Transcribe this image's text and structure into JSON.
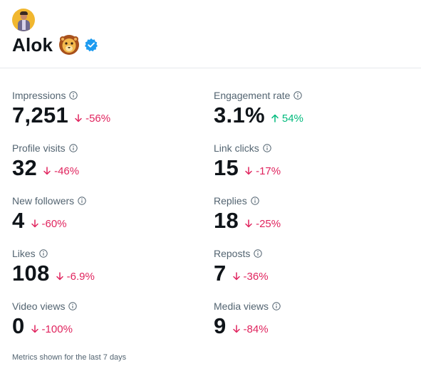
{
  "profile": {
    "name": "Alok",
    "avatar_icon": "profile-photo",
    "emoji_icon": "lion-face-icon",
    "badge_icon": "verified-badge-icon",
    "badge_color": "#1d9bf0"
  },
  "colors": {
    "negative": "#e0245e",
    "positive": "#00ba7c",
    "label": "#536471"
  },
  "metrics": [
    {
      "label": "Impressions",
      "value": "7,251",
      "change": "-56%",
      "direction": "down"
    },
    {
      "label": "Engagement rate",
      "value": "3.1%",
      "change": "54%",
      "direction": "up"
    },
    {
      "label": "Profile visits",
      "value": "32",
      "change": "-46%",
      "direction": "down"
    },
    {
      "label": "Link clicks",
      "value": "15",
      "change": "-17%",
      "direction": "down"
    },
    {
      "label": "New followers",
      "value": "4",
      "change": "-60%",
      "direction": "down"
    },
    {
      "label": "Replies",
      "value": "18",
      "change": "-25%",
      "direction": "down"
    },
    {
      "label": "Likes",
      "value": "108",
      "change": "-6.9%",
      "direction": "down"
    },
    {
      "label": "Reposts",
      "value": "7",
      "change": "-36%",
      "direction": "down"
    },
    {
      "label": "Video views",
      "value": "0",
      "change": "-100%",
      "direction": "down"
    },
    {
      "label": "Media views",
      "value": "9",
      "change": "-84%",
      "direction": "down"
    }
  ],
  "footnote": "Metrics shown for the last 7 days"
}
